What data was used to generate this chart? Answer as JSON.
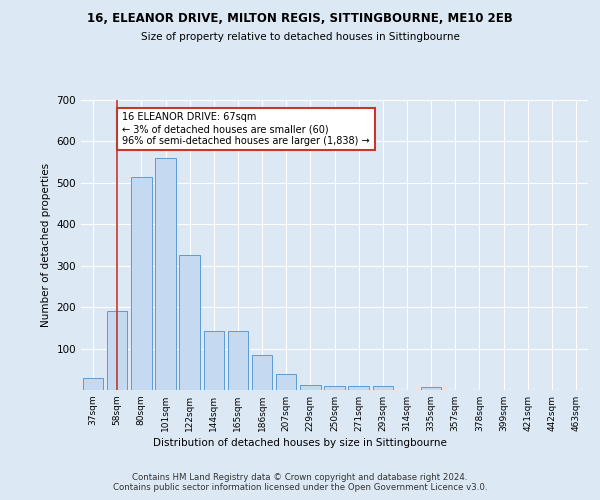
{
  "title1": "16, ELEANOR DRIVE, MILTON REGIS, SITTINGBOURNE, ME10 2EB",
  "title2": "Size of property relative to detached houses in Sittingbourne",
  "xlabel": "Distribution of detached houses by size in Sittingbourne",
  "ylabel": "Number of detached properties",
  "bar_labels": [
    "37sqm",
    "58sqm",
    "80sqm",
    "101sqm",
    "122sqm",
    "144sqm",
    "165sqm",
    "186sqm",
    "207sqm",
    "229sqm",
    "250sqm",
    "271sqm",
    "293sqm",
    "314sqm",
    "335sqm",
    "357sqm",
    "378sqm",
    "399sqm",
    "421sqm",
    "442sqm",
    "463sqm"
  ],
  "bar_values": [
    30,
    190,
    515,
    560,
    325,
    142,
    142,
    85,
    38,
    13,
    10,
    10,
    10,
    0,
    7,
    0,
    0,
    0,
    0,
    0,
    0
  ],
  "bar_color": "#c5d9f0",
  "bar_edge_color": "#5b9bd5",
  "vline_x": 1.0,
  "vline_color": "#c0392b",
  "annotation_text": "16 ELEANOR DRIVE: 67sqm\n← 3% of detached houses are smaller (60)\n96% of semi-detached houses are larger (1,838) →",
  "annotation_box_color": "white",
  "annotation_box_edge": "#c0392b",
  "bg_color": "#dce9f5",
  "plot_bg": "#dce9f5",
  "footer": "Contains HM Land Registry data © Crown copyright and database right 2024.\nContains public sector information licensed under the Open Government Licence v3.0.",
  "ylim": [
    0,
    700
  ],
  "yticks": [
    0,
    100,
    200,
    300,
    400,
    500,
    600,
    700
  ]
}
